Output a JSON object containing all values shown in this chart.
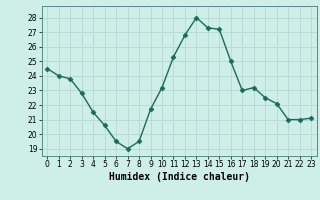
{
  "x": [
    0,
    1,
    2,
    3,
    4,
    5,
    6,
    7,
    8,
    9,
    10,
    11,
    12,
    13,
    14,
    15,
    16,
    17,
    18,
    19,
    20,
    21,
    22,
    23
  ],
  "y": [
    24.5,
    24.0,
    23.8,
    22.8,
    21.5,
    20.6,
    19.5,
    19.0,
    19.5,
    21.7,
    23.2,
    25.3,
    26.8,
    28.0,
    27.3,
    27.2,
    25.0,
    23.0,
    23.2,
    22.5,
    22.1,
    21.0,
    21.0,
    21.1
  ],
  "xlabel": "Humidex (Indice chaleur)",
  "line_color": "#1a6b5a",
  "bg_color": "#ceeee8",
  "grid_color": "#b0d4cf",
  "border_color": "#5a8a84",
  "ylim": [
    18.5,
    28.8
  ],
  "xlim": [
    -0.5,
    23.5
  ],
  "yticks": [
    19,
    20,
    21,
    22,
    23,
    24,
    25,
    26,
    27,
    28
  ],
  "xticks": [
    0,
    1,
    2,
    3,
    4,
    5,
    6,
    7,
    8,
    9,
    10,
    11,
    12,
    13,
    14,
    15,
    16,
    17,
    18,
    19,
    20,
    21,
    22,
    23
  ],
  "marker": "D",
  "marker_size": 2.5,
  "line_width": 1.0,
  "xlabel_fontsize": 7,
  "tick_fontsize": 5.5
}
